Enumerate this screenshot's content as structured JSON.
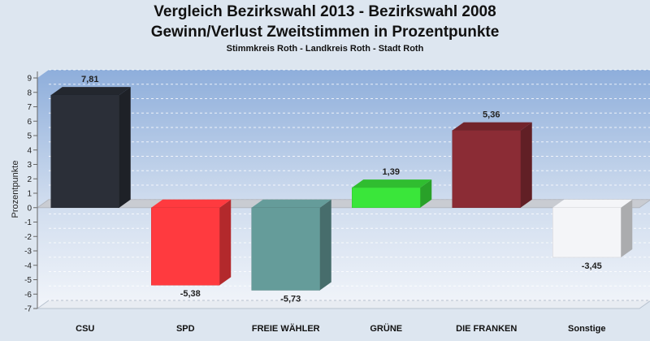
{
  "title_line1": "Vergleich Bezirkswahl 2013 - Bezirkswahl 2008",
  "title_line2": "Gewinn/Verlust Zweitstimmen in Prozentpunkte",
  "subtitle": "Stimmkreis Roth - Landkreis Roth - Stadt Roth",
  "chart_data": {
    "type": "bar",
    "title": "Vergleich Bezirkswahl 2013 - Bezirkswahl 2008 Gewinn/Verlust Zweitstimmen in Prozentpunkte",
    "subtitle": "Stimmkreis Roth - Landkreis Roth - Stadt Roth",
    "ylabel": "Prozentpunkte",
    "xlabel": "",
    "ylim": [
      -7,
      9
    ],
    "yticks": [
      "9",
      "8",
      "7",
      "6",
      "5",
      "4",
      "3",
      "2",
      "1",
      "0",
      "-1",
      "-2",
      "-3",
      "-4",
      "-5",
      "-6",
      "-7"
    ],
    "grid": true,
    "categories": [
      "CSU",
      "SPD",
      "FREIE WÄHLER",
      "GRÜNE",
      "DIE FRANKEN",
      "Sonstige"
    ],
    "values": [
      7.81,
      -5.38,
      -5.73,
      1.39,
      5.36,
      -3.45
    ],
    "value_labels": [
      "7,81",
      "-5,38",
      "-5,73",
      "1,39",
      "5,36",
      "-3,45"
    ],
    "colors": [
      "#2b2f38",
      "#ff3a3f",
      "#659c9a",
      "#3ae63a",
      "#8b2c35",
      "#f4f5f8"
    ]
  }
}
